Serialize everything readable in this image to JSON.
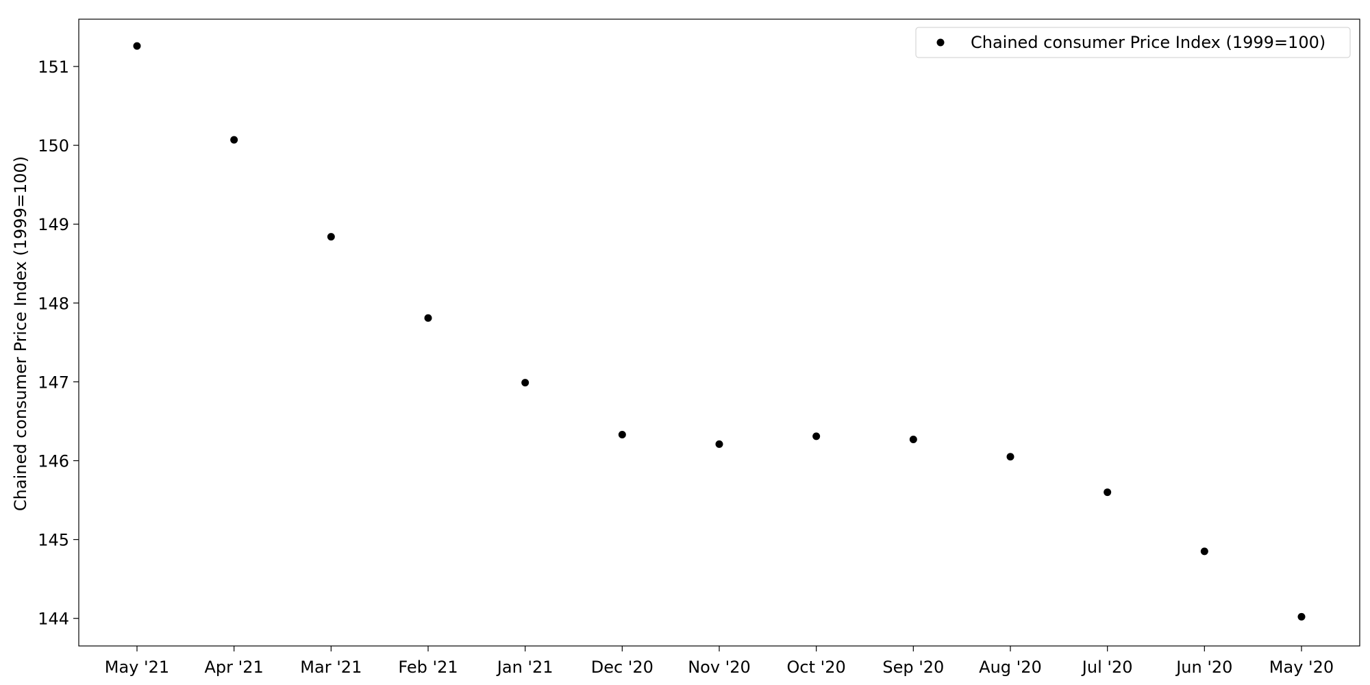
{
  "chart_data": {
    "type": "scatter",
    "title": "",
    "xlabel": "",
    "ylabel": "Chained consumer Price Index (1999=100)",
    "categories": [
      "May '21",
      "Apr '21",
      "Mar '21",
      "Feb '21",
      "Jan '21",
      "Dec '20",
      "Nov '20",
      "Oct '20",
      "Sep '20",
      "Aug '20",
      "Jul '20",
      "Jun '20",
      "May '20"
    ],
    "series": [
      {
        "name": "Chained consumer Price Index (1999=100)",
        "color": "#000000",
        "values": [
          151.26,
          150.07,
          148.84,
          147.81,
          146.99,
          146.33,
          146.21,
          146.31,
          146.27,
          146.05,
          145.6,
          144.85,
          144.02
        ]
      }
    ],
    "ylim": [
      143.65,
      151.6
    ],
    "yticks": [
      144,
      145,
      146,
      147,
      148,
      149,
      150,
      151
    ],
    "grid": false,
    "legend_position": "top-right"
  }
}
